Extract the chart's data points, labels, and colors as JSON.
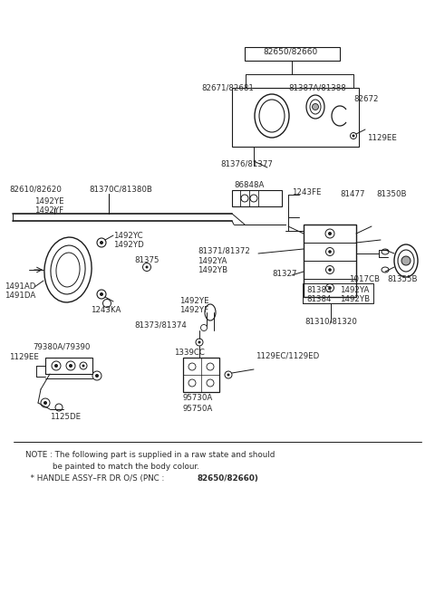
{
  "bg_color": "#ffffff",
  "line_color": "#1a1a1a",
  "text_color": "#2a2a2a",
  "note_line1": "NOTE : The following part is supplied in a raw state and should",
  "note_line2": "be painted to match the body colour.",
  "note_line3_pre": "  * HANDLE ASSY–FR DR O/S (PNC : ",
  "note_bold": "82650/82660)",
  "fig_width": 4.8,
  "fig_height": 6.55,
  "dpi": 100
}
